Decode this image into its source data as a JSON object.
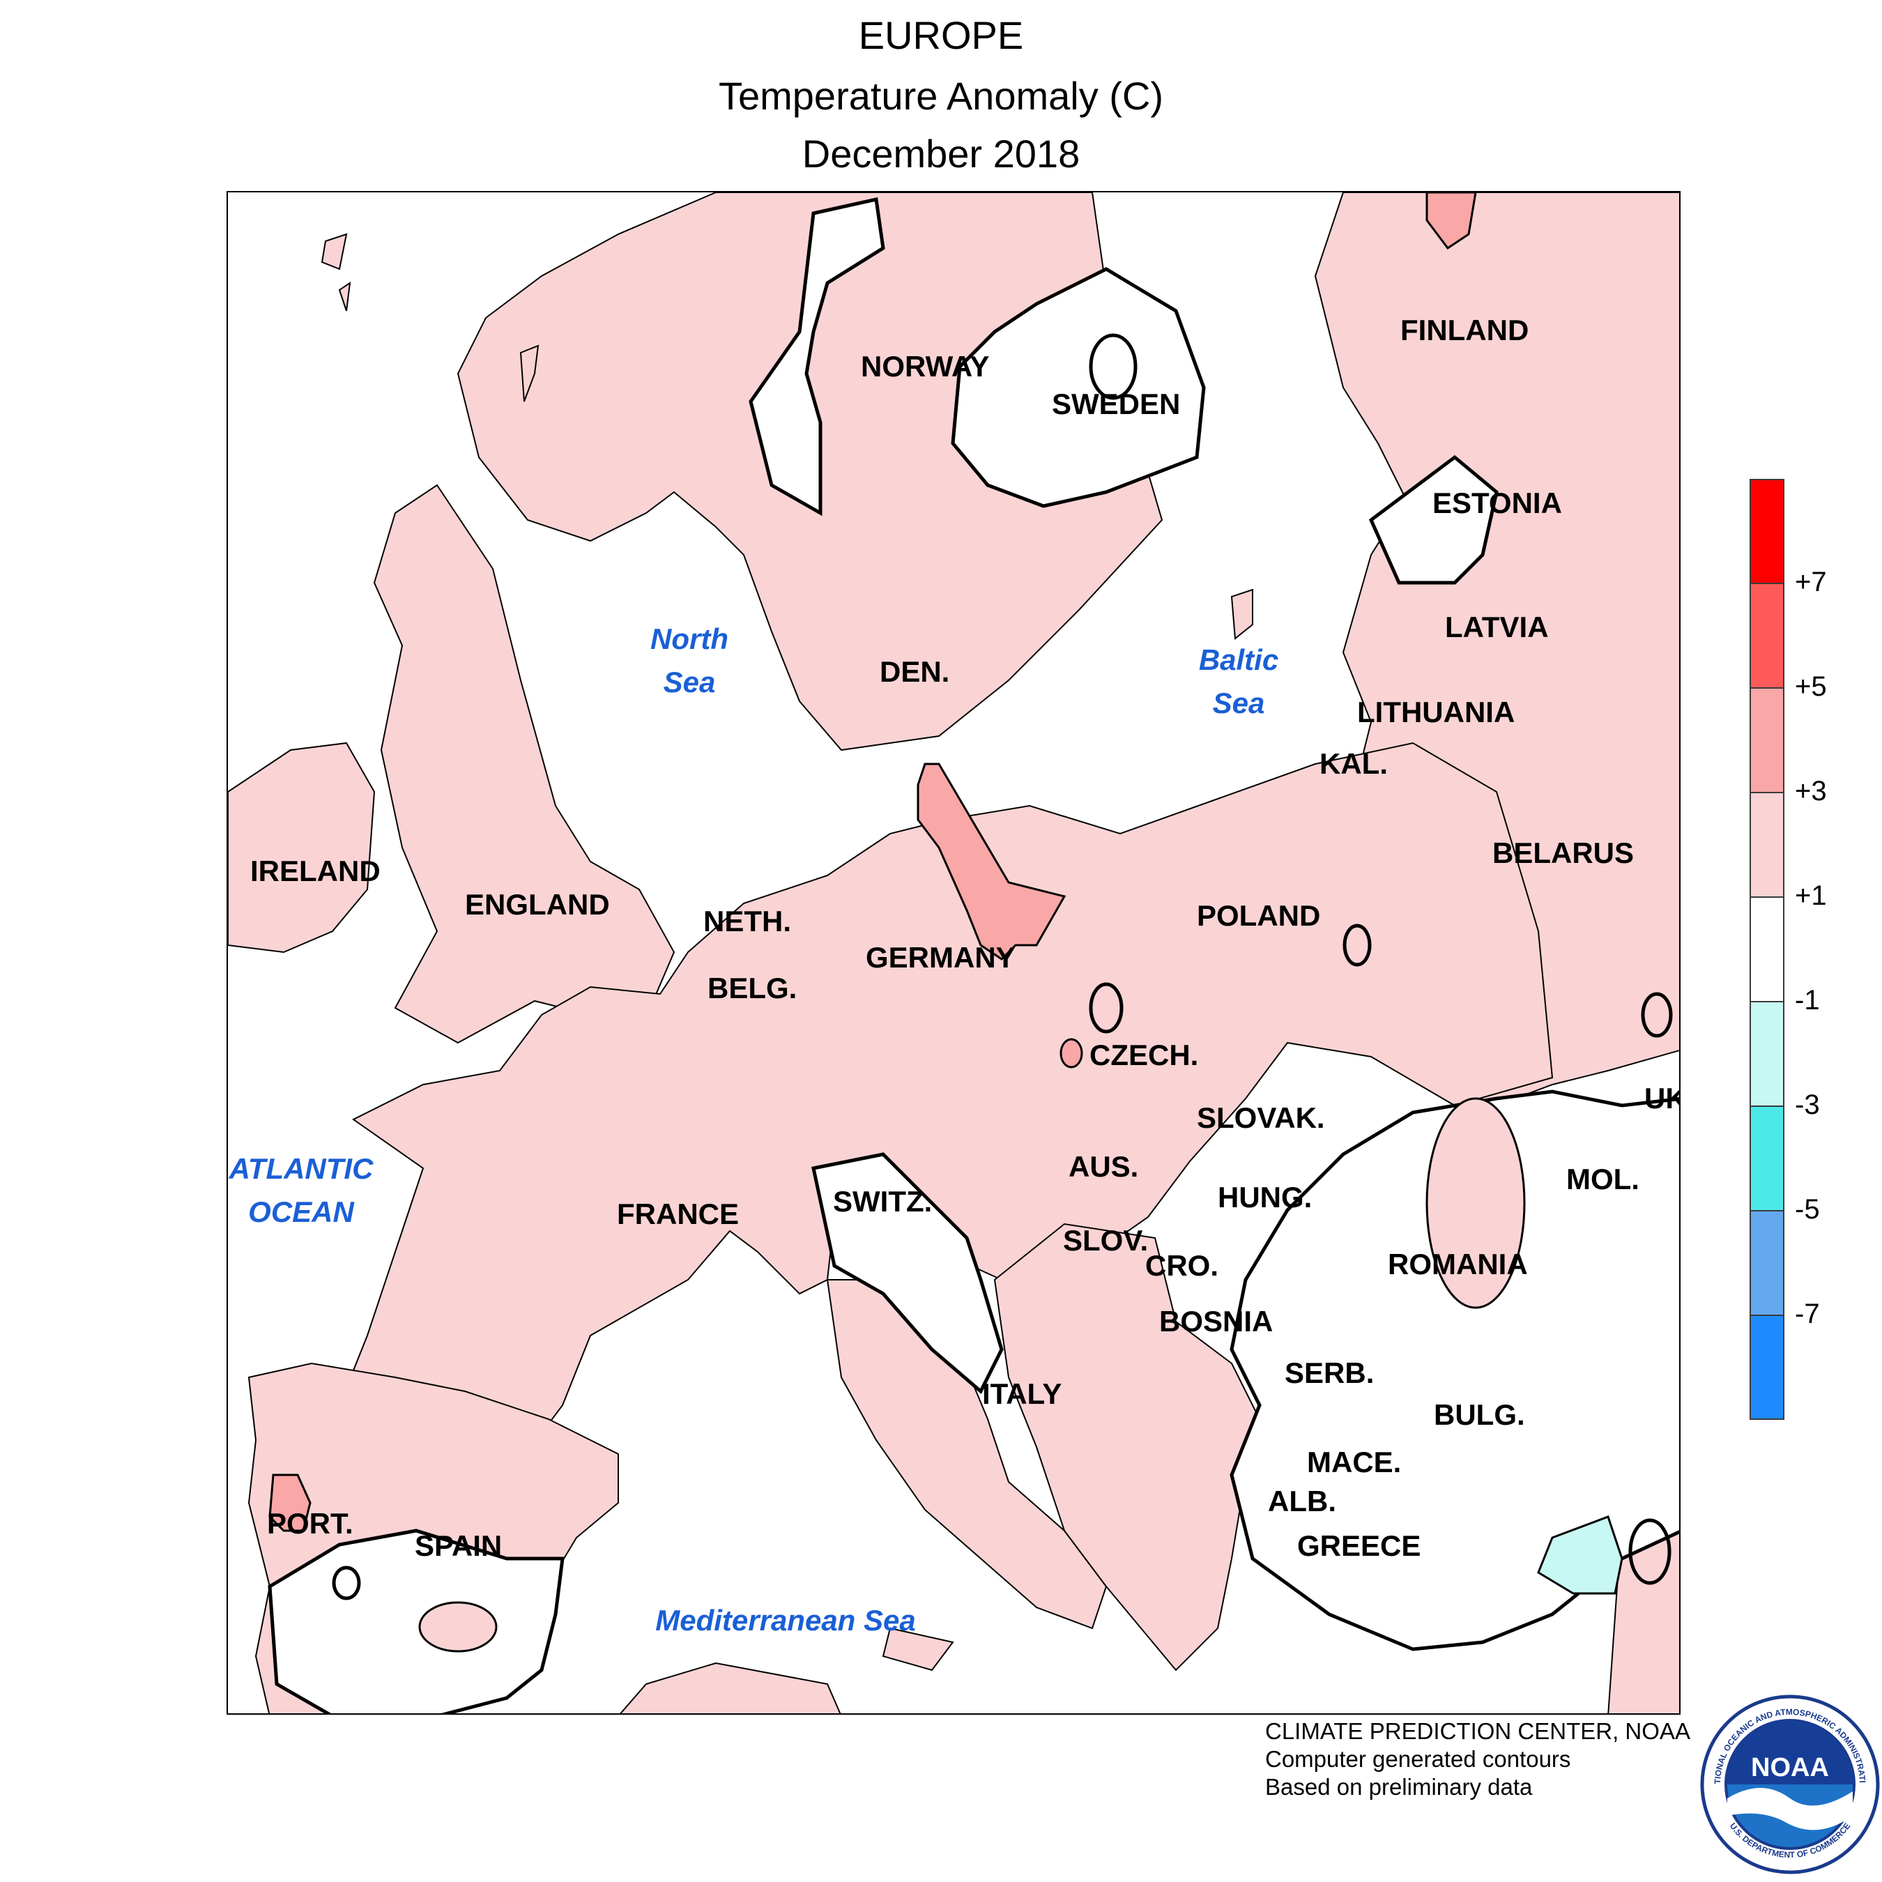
{
  "title": {
    "line1": "EUROPE",
    "line2": "Temperature Anomaly (C)",
    "line3": "December 2018"
  },
  "map": {
    "countries": {
      "norway": "NORWAY",
      "sweden": "SWEDEN",
      "finland": "FINLAND",
      "estonia": "ESTONIA",
      "latvia": "LATVIA",
      "lithuania": "LITHUANIA",
      "kaliningrad": "KAL.",
      "belarus": "BELARUS",
      "denmark": "DEN.",
      "ireland": "IRELAND",
      "england": "ENGLAND",
      "netherlands": "NETH.",
      "belgium": "BELG.",
      "germany": "GERMANY",
      "poland": "POLAND",
      "czech": "CZECH.",
      "slovakia": "SLOVAK.",
      "ukraine": "UK",
      "austria": "AUS.",
      "hungary": "HUNG.",
      "moldova": "MOL.",
      "romania": "ROMANIA",
      "switzerland": "SWITZ.",
      "france": "FRANCE",
      "slovenia": "SLOV.",
      "croatia": "CRO.",
      "bosnia": "BOSNIA",
      "serbia": "SERB.",
      "bulgaria": "BULG.",
      "macedonia": "MACE.",
      "albania": "ALB.",
      "greece": "GREECE",
      "italy": "ITALY",
      "portugal": "PORT.",
      "spain": "SPAIN"
    },
    "water": {
      "north_sea_1": "North",
      "north_sea_2": "Sea",
      "baltic_sea_1": "Baltic",
      "baltic_sea_2": "Sea",
      "atlantic_1": "ATLANTIC",
      "atlantic_2": "OCEAN",
      "mediterranean": "Mediterranean Sea"
    }
  },
  "legend": {
    "ticks": [
      "+7",
      "+5",
      "+3",
      "+1",
      "-1",
      "-3",
      "-5",
      "-7"
    ],
    "bins": [
      {
        "range": "> +7",
        "color": "#ff0000"
      },
      {
        "range": "+5 to +7",
        "color": "#ff5a5a"
      },
      {
        "range": "+3 to +5",
        "color": "#f9a7a7"
      },
      {
        "range": "+1 to +3",
        "color": "#fad4d4"
      },
      {
        "range": "-1 to +1",
        "color": "#ffffff"
      },
      {
        "range": "-3 to -1",
        "color": "#c8f8f4"
      },
      {
        "range": "-5 to -3",
        "color": "#4de8e8"
      },
      {
        "range": "-7 to -5",
        "color": "#64a8f0"
      },
      {
        "range": "< -7",
        "color": "#1e8cff"
      }
    ]
  },
  "credits": {
    "line1": "CLIMATE PREDICTION CENTER, NOAA",
    "line2": "Computer generated contours",
    "line3": "Based on preliminary data"
  },
  "logo": {
    "text": "NOAA",
    "ring_top": "NATIONAL OCEANIC AND ATMOSPHERIC ADMINISTRATION",
    "ring_bottom": "U.S. DEPARTMENT OF COMMERCE",
    "colors": {
      "ring": "#1a3a8c",
      "inner": "#1e73c8",
      "bird": "#ffffff"
    }
  }
}
